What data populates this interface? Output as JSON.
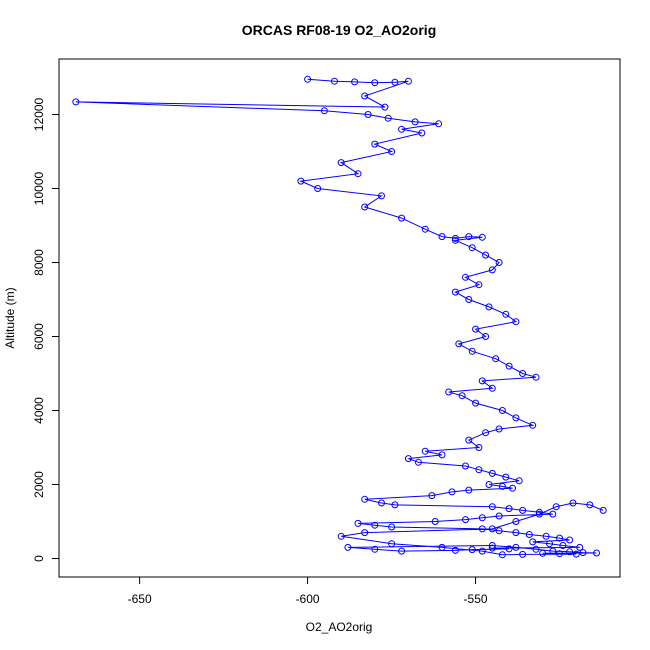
{
  "chart_data": {
    "type": "line",
    "title": "ORCAS RF08-19 O2_AO2orig",
    "xlabel": "O2_AO2orig",
    "ylabel": "Altitude (m)",
    "xlim": [
      -674,
      -507
    ],
    "ylim": [
      -500,
      13500
    ],
    "xticks": [
      -650,
      -600,
      -550
    ],
    "yticks": [
      0,
      2000,
      4000,
      6000,
      8000,
      10000,
      12000
    ],
    "grid": false,
    "legend": "none",
    "series": [
      {
        "color": "#0000ff",
        "marker": "open-circle",
        "connected": true,
        "x": [
          -600,
          -592,
          -586,
          -580,
          -574,
          -570,
          -583,
          -577,
          -669,
          -595,
          -582,
          -576,
          -568,
          -561,
          -572,
          -566,
          -580,
          -575,
          -590,
          -585,
          -602,
          -597,
          -578,
          -583,
          -572,
          -565,
          -560,
          -556,
          -552,
          -548,
          -556,
          -551,
          -547,
          -543,
          -545,
          -553,
          -549,
          -556,
          -552,
          -546,
          -541,
          -538,
          -550,
          -547,
          -555,
          -551,
          -544,
          -540,
          -536,
          -532,
          -548,
          -545,
          -558,
          -554,
          -550,
          -542,
          -538,
          -533,
          -543,
          -547,
          -552,
          -549,
          -565,
          -560,
          -570,
          -567,
          -553,
          -549,
          -545,
          -541,
          -537,
          -546,
          -542,
          -539,
          -552,
          -557,
          -563,
          -583,
          -578,
          -574,
          -545,
          -540,
          -536,
          -531,
          -527,
          -543,
          -548,
          -553,
          -562,
          -585,
          -580,
          -575,
          -548,
          -543,
          -538,
          -534,
          -529,
          -525,
          -522,
          -533,
          -528,
          -524,
          -519,
          -545,
          -540,
          -551,
          -556,
          -572,
          -580,
          -588,
          -545,
          -538,
          -532,
          -527,
          -522,
          -518,
          -514,
          -530,
          -525,
          -520,
          -536,
          -542,
          -548,
          -560,
          -575,
          -590,
          -583,
          -545,
          -538,
          -531,
          -526,
          -521,
          -516,
          -512
        ],
        "y": [
          12950,
          12900,
          12880,
          12860,
          12870,
          12900,
          12500,
          12200,
          12340,
          12100,
          12000,
          11900,
          11800,
          11750,
          11600,
          11500,
          11200,
          11000,
          10700,
          10400,
          10200,
          10000,
          9800,
          9500,
          9200,
          8900,
          8700,
          8650,
          8700,
          8680,
          8600,
          8400,
          8200,
          8000,
          7800,
          7600,
          7400,
          7200,
          7000,
          6800,
          6600,
          6400,
          6200,
          6000,
          5800,
          5600,
          5400,
          5200,
          5000,
          4900,
          4800,
          4600,
          4500,
          4400,
          4200,
          4000,
          3800,
          3600,
          3500,
          3400,
          3200,
          3000,
          2900,
          2800,
          2700,
          2600,
          2500,
          2400,
          2300,
          2200,
          2100,
          2000,
          1950,
          1900,
          1850,
          1800,
          1700,
          1600,
          1500,
          1450,
          1400,
          1350,
          1300,
          1250,
          1200,
          1150,
          1100,
          1050,
          1000,
          950,
          900,
          850,
          800,
          750,
          700,
          650,
          600,
          550,
          500,
          450,
          400,
          350,
          300,
          280,
          260,
          240,
          220,
          200,
          250,
          300,
          350,
          300,
          250,
          200,
          180,
          160,
          150,
          140,
          130,
          120,
          110,
          100,
          200,
          300,
          400,
          600,
          700,
          800,
          1000,
          1200,
          1400,
          1500,
          1450,
          1300
        ]
      }
    ]
  }
}
